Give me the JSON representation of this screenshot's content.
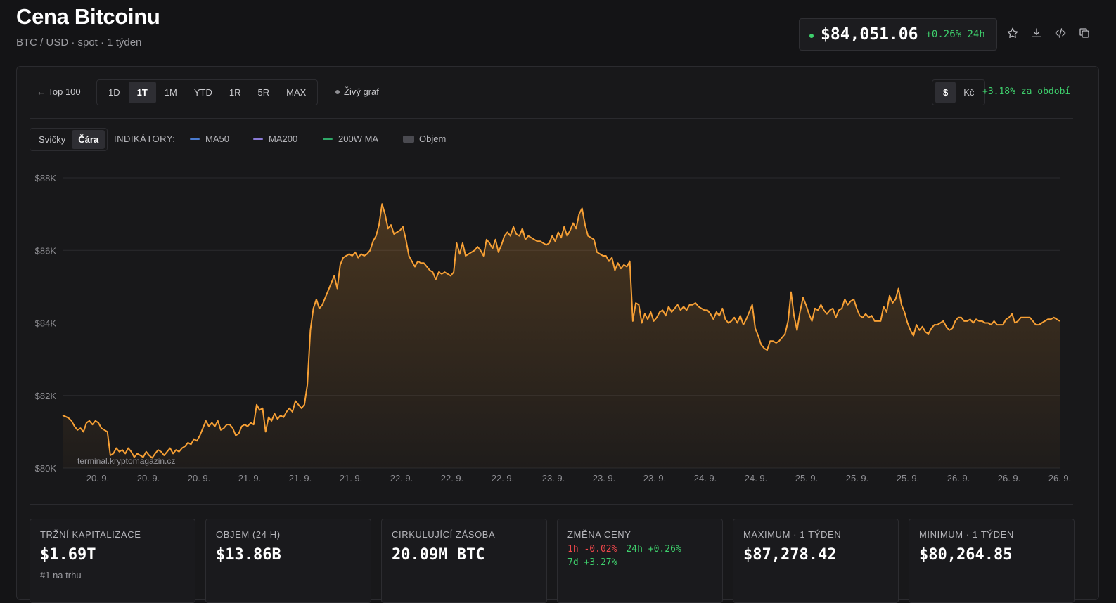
{
  "header": {
    "title": "Cena Bitcoinu",
    "subtitle": "BTC / USD · spot · 1 týden"
  },
  "price_box": {
    "price": "$84,051.06",
    "change": "+0.26% 24h",
    "status_color": "#3ecf6c"
  },
  "header_icons": [
    "star-icon",
    "download-icon",
    "code-icon",
    "copy-icon"
  ],
  "toolbar": {
    "back_label": "← Top 100",
    "ranges": [
      "1D",
      "1T",
      "1M",
      "YTD",
      "1R",
      "5R",
      "MAX"
    ],
    "active_range": "1T",
    "live_label": "Živý graf",
    "currencies": [
      "$",
      "Kč"
    ],
    "active_currency": "$",
    "period_change": "+3.18% za období"
  },
  "chart_controls": {
    "types": [
      "Svíčky",
      "Čára"
    ],
    "active_type": "Čára",
    "indicators_label": "INDIKÁTORY:",
    "indicators": [
      {
        "label": "MA50",
        "color": "#4a7bd0"
      },
      {
        "label": "MA200",
        "color": "#8a7ad6"
      },
      {
        "label": "200W MA",
        "color": "#2fa868"
      },
      {
        "label": "Objem",
        "color": "#4a4a50"
      }
    ]
  },
  "chart_data": {
    "type": "area",
    "line_color": "#f7a035",
    "ylim": [
      80000,
      88000
    ],
    "y_ticks": [
      "$88K",
      "$86K",
      "$84K",
      "$82K",
      "$80K"
    ],
    "x_ticks": [
      "20. 9.",
      "20. 9.",
      "20. 9.",
      "21. 9.",
      "21. 9.",
      "21. 9.",
      "22. 9.",
      "22. 9.",
      "22. 9.",
      "23. 9.",
      "23. 9.",
      "23. 9.",
      "24. 9.",
      "24. 9.",
      "25. 9.",
      "25. 9.",
      "25. 9.",
      "26. 9.",
      "26. 9.",
      "26. 9."
    ],
    "watermark": "terminal.kryptomagazin.cz",
    "series": [
      {
        "values": [
          81450,
          81420,
          81380,
          81300,
          81150,
          81050,
          81100,
          81000,
          81250,
          81300,
          81200,
          81300,
          81250,
          81100,
          81050,
          81000,
          80350,
          80400,
          80550,
          80450,
          80500,
          80400,
          80550,
          80450,
          80300,
          80400,
          80350,
          80300,
          80450,
          80350,
          80280,
          80400,
          80500,
          80450,
          80350,
          80450,
          80550,
          80400,
          80500,
          80450,
          80550,
          80600,
          80700,
          80650,
          80800,
          80750,
          80900,
          81100,
          81300,
          81150,
          81250,
          81150,
          81300,
          81050,
          81100,
          81200,
          81200,
          81100,
          80900,
          80950,
          81150,
          81200,
          81150,
          81250,
          81200,
          81750,
          81600,
          81650,
          81000,
          81400,
          81300,
          81500,
          81350,
          81450,
          81400,
          81550,
          81650,
          81550,
          81850,
          81750,
          81650,
          81750,
          82300,
          83800,
          84400,
          84650,
          84400,
          84500,
          84700,
          84900,
          85100,
          85300,
          84950,
          85600,
          85800,
          85850,
          85900,
          85850,
          85950,
          85800,
          85900,
          85850,
          85900,
          86000,
          86250,
          86400,
          86700,
          87280,
          87000,
          86600,
          86700,
          86450,
          86500,
          86550,
          86650,
          86300,
          85850,
          85700,
          85550,
          85700,
          85650,
          85650,
          85550,
          85450,
          85400,
          85200,
          85400,
          85350,
          85400,
          85350,
          85300,
          85400,
          86200,
          85900,
          86200,
          85850,
          85900,
          85950,
          86000,
          86100,
          86000,
          85850,
          86300,
          86200,
          86050,
          86300,
          85950,
          86150,
          86400,
          86500,
          86400,
          86650,
          86450,
          86400,
          86600,
          86300,
          86400,
          86350,
          86300,
          86250,
          86250,
          86200,
          86150,
          86200,
          86400,
          86250,
          86500,
          86350,
          86650,
          86400,
          86550,
          86750,
          86600,
          87000,
          87160,
          86700,
          86400,
          86350,
          86300,
          85950,
          85900,
          85850,
          85850,
          85700,
          85800,
          85450,
          85650,
          85500,
          85600,
          85550,
          85700,
          84050,
          84550,
          84500,
          84000,
          84250,
          84100,
          84300,
          84050,
          84150,
          84300,
          84350,
          84200,
          84450,
          84300,
          84400,
          84500,
          84350,
          84450,
          84350,
          84500,
          84500,
          84550,
          84450,
          84400,
          84350,
          84350,
          84250,
          84100,
          84300,
          84200,
          84400,
          84100,
          84000,
          84050,
          84150,
          84000,
          84200,
          83950,
          84100,
          84300,
          84500,
          83850,
          83650,
          83400,
          83300,
          83250,
          83500,
          83500,
          83450,
          83500,
          83600,
          83700,
          84050,
          84850,
          84200,
          83800,
          84300,
          84700,
          84500,
          84250,
          84050,
          84400,
          84350,
          84500,
          84350,
          84250,
          84350,
          84400,
          84150,
          84350,
          84400,
          84650,
          84500,
          84600,
          84650,
          84400,
          84200,
          84150,
          84250,
          84150,
          84200,
          84050,
          84050,
          84050,
          84450,
          84300,
          84750,
          84550,
          84650,
          84950,
          84500,
          84300,
          84000,
          83800,
          83650,
          83950,
          83800,
          83900,
          83750,
          83700,
          83850,
          83950,
          83950,
          84000,
          84050,
          83900,
          83800,
          83850,
          84050,
          84150,
          84150,
          84050,
          84050,
          84100,
          84000,
          84100,
          84050,
          84050,
          84000,
          84000,
          83950,
          84050,
          83950,
          83950,
          83950,
          84100,
          84150,
          84250,
          84000,
          84050,
          84150,
          84150,
          84150,
          84150,
          84050,
          83950,
          83950,
          84000,
          84050,
          84100,
          84100,
          84150,
          84100,
          84050
        ]
      }
    ]
  },
  "stats": [
    {
      "label": "TRŽNÍ KAPITALIZACE",
      "value": "$1.69T",
      "sub": "#1 na trhu"
    },
    {
      "label": "OBJEM (24 H)",
      "value": "$13.86B",
      "sub": ""
    },
    {
      "label": "CIRKULUJÍCÍ ZÁSOBA",
      "value": "20.09M BTC",
      "sub": ""
    },
    {
      "label": "ZMĚNA CENY",
      "changes": {
        "h1": "1h -0.02%",
        "h24": "24h +0.26%",
        "d7": "7d +3.27%"
      }
    },
    {
      "label": "MAXIMUM · 1 TÝDEN",
      "value": "$87,278.42",
      "sub": ""
    },
    {
      "label": "MINIMUM · 1 TÝDEN",
      "value": "$80,264.85",
      "sub": ""
    }
  ]
}
